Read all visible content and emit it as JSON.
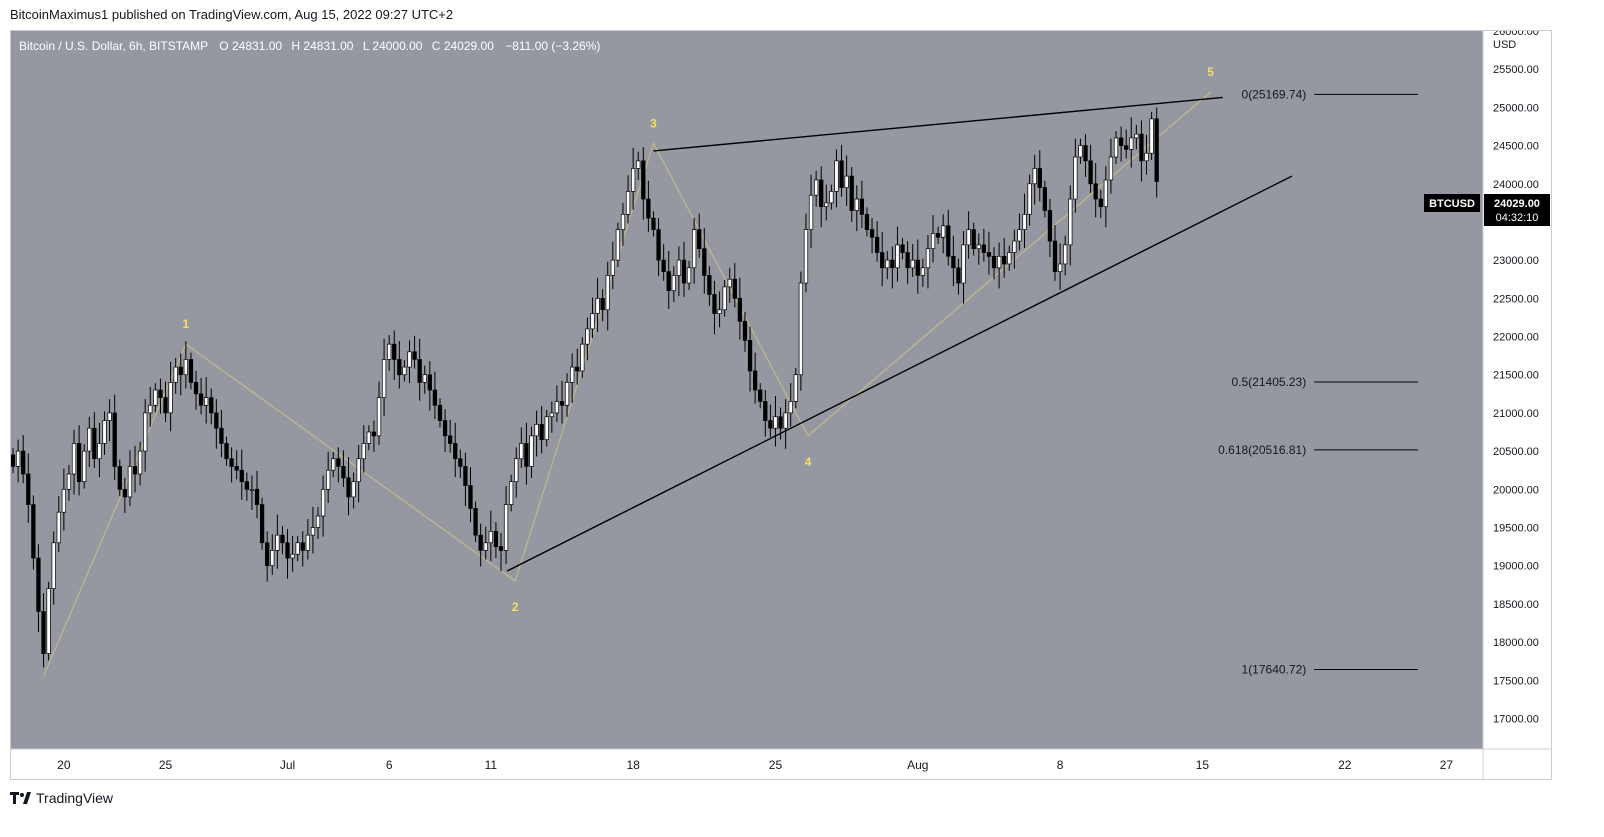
{
  "header": {
    "attribution": "BitcoinMaximus1 published on TradingView.com, Aug 15, 2022 09:27 UTC+2"
  },
  "legend": {
    "symbol": "Bitcoin / U.S. Dollar, 6h, BITSTAMP",
    "o_label": "O",
    "o_value": "24831.00",
    "h_label": "H",
    "h_value": "24831.00",
    "l_label": "L",
    "l_value": "24000.00",
    "c_label": "C",
    "c_value": "24029.00",
    "change": "−811.00 (−3.26%)"
  },
  "footer": {
    "brand": "TradingView"
  },
  "colors": {
    "chart_bg": "#9598a1",
    "axis_bg": "#ffffff",
    "wave_label": "#f6e05e",
    "wave_line": "#c2b98a",
    "candle_up_fill": "#ffffff",
    "candle_down_fill": "#000000",
    "price_tag_bg": "#000000"
  },
  "chart_data": {
    "type": "candlestick",
    "title": "Bitcoin / U.S. Dollar, 6h, BITSTAMP",
    "currency_label": "USD",
    "ylim": [
      16600,
      26000
    ],
    "y_ticks": [
      26000,
      25500,
      25000,
      24500,
      24000,
      23500,
      23000,
      22500,
      22000,
      21500,
      21000,
      20500,
      20000,
      19500,
      19000,
      18500,
      18000,
      17500,
      17000
    ],
    "x_ticks": [
      {
        "label": "20",
        "day": 0
      },
      {
        "label": "25",
        "day": 5
      },
      {
        "label": "Jul",
        "day": 11
      },
      {
        "label": "6",
        "day": 16
      },
      {
        "label": "11",
        "day": 21
      },
      {
        "label": "18",
        "day": 28
      },
      {
        "label": "25",
        "day": 35
      },
      {
        "label": "Aug",
        "day": 42
      },
      {
        "label": "8",
        "day": 49
      },
      {
        "label": "15",
        "day": 56
      },
      {
        "label": "22",
        "day": 63
      },
      {
        "label": "27",
        "day": 68
      }
    ],
    "x_range_days": [
      -2.6,
      69.8
    ],
    "price_tag": {
      "symbol": "BTCUSD",
      "price": "24029.00",
      "countdown": "04:32:10",
      "value": 24029
    },
    "wave_pivots": [
      {
        "day": -1.0,
        "price": 17550,
        "label": ""
      },
      {
        "day": 6.0,
        "price": 21900,
        "label": "1"
      },
      {
        "day": 22.2,
        "price": 18800,
        "label": "2"
      },
      {
        "day": 29.0,
        "price": 24530,
        "label": "3"
      },
      {
        "day": 36.6,
        "price": 20700,
        "label": "4"
      },
      {
        "day": 56.4,
        "price": 25200,
        "label": "5"
      }
    ],
    "trendlines": [
      {
        "name": "upper",
        "from": {
          "day": 29.0,
          "price": 24430
        },
        "to": {
          "day": 57.0,
          "price": 25130
        }
      },
      {
        "name": "lower",
        "from": {
          "day": 21.8,
          "price": 18930
        },
        "to": {
          "day": 60.4,
          "price": 24100
        }
      }
    ],
    "fib_levels": [
      {
        "label": "0(25169.74)",
        "value": 25169.74
      },
      {
        "label": "0.5(21405.23)",
        "value": 21405.23
      },
      {
        "label": "0.618(20516.81)",
        "value": 20516.81
      },
      {
        "label": "1(17640.72)",
        "value": 17640.72
      }
    ],
    "fib_line_days": [
      61.5,
      66.6
    ],
    "candle_start_day": -2.5,
    "candle_step_day": 0.25,
    "candle_closes": [
      20300,
      20500,
      20200,
      19800,
      19100,
      18400,
      17850,
      18700,
      19300,
      19700,
      20000,
      20200,
      20600,
      20100,
      20500,
      20800,
      20400,
      20600,
      20900,
      21000,
      20300,
      20000,
      19900,
      20300,
      20200,
      20500,
      21000,
      21100,
      21300,
      21200,
      21000,
      21400,
      21600,
      21500,
      21700,
      21400,
      21250,
      21100,
      21200,
      21000,
      20800,
      20600,
      20400,
      20300,
      20250,
      20100,
      20000,
      20000,
      19800,
      19300,
      19000,
      19200,
      19400,
      19300,
      19100,
      19150,
      19300,
      19200,
      19400,
      19500,
      19650,
      20000,
      20250,
      20400,
      20300,
      20150,
      19900,
      20100,
      20400,
      20600,
      20750,
      20700,
      21200,
      21700,
      21900,
      21700,
      21500,
      21600,
      21800,
      21700,
      21400,
      21500,
      21300,
      21100,
      20900,
      20700,
      20600,
      20400,
      20300,
      20050,
      19750,
      19400,
      19200,
      19300,
      19450,
      19250,
      19200,
      19800,
      20100,
      20400,
      20600,
      20300,
      20700,
      20850,
      20650,
      20950,
      21000,
      21150,
      21100,
      21400,
      21600,
      21550,
      21900,
      22100,
      22300,
      22500,
      22350,
      22800,
      23000,
      23400,
      23600,
      23900,
      24200,
      24300,
      23800,
      23550,
      23400,
      23000,
      22850,
      22600,
      22800,
      23000,
      22700,
      22900,
      23400,
      23150,
      22800,
      22550,
      22300,
      22350,
      22650,
      22750,
      22500,
      22200,
      21950,
      21550,
      21300,
      21150,
      20900,
      20800,
      20950,
      20800,
      21000,
      21150,
      21500,
      22700,
      23400,
      23850,
      24050,
      23700,
      23750,
      23900,
      24300,
      23950,
      24100,
      23650,
      23800,
      23600,
      23400,
      23300,
      23100,
      22900,
      23000,
      22900,
      23200,
      23100,
      22900,
      23000,
      22800,
      22900,
      23150,
      23350,
      23300,
      23450,
      23050,
      22900,
      22700,
      23200,
      23400,
      23150,
      23200,
      23100,
      23050,
      22900,
      23050,
      22950,
      23100,
      23250,
      23400,
      23600,
      24000,
      24200,
      23950,
      23650,
      23250,
      22850,
      22950,
      23200,
      23800,
      24350,
      24500,
      24300,
      24000,
      23800,
      23700,
      24050,
      24350,
      24600,
      24500,
      24450,
      24600,
      24650,
      24300,
      24400,
      24850,
      24029
    ]
  }
}
